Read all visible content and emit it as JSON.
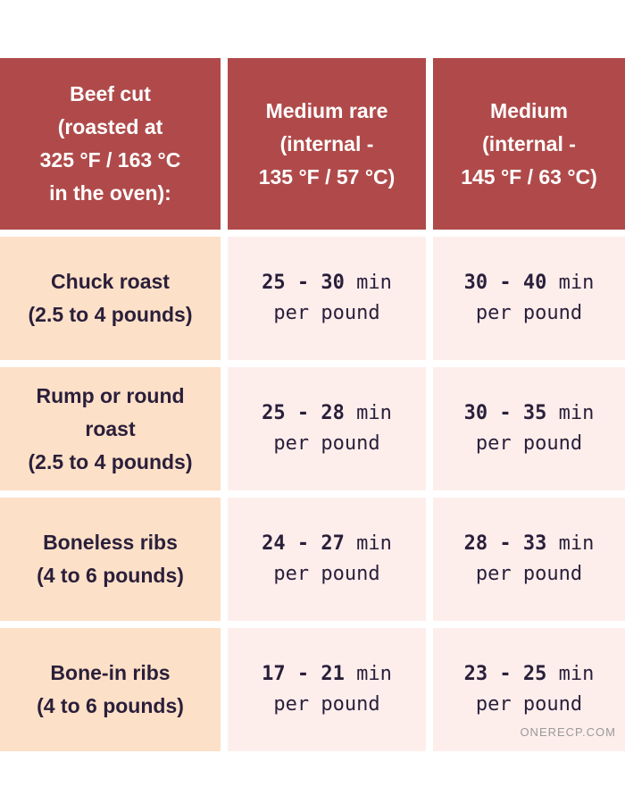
{
  "headers": [
    "Beef cut\n(roasted at\n325 °F / 163 °C\nin the oven):",
    "Medium rare\n(internal -\n135 °F / 57 °C)",
    "Medium\n(internal -\n145 °F / 63 °C)"
  ],
  "rows": [
    {
      "cut": "Chuck roast\n(2.5 to 4 pounds)",
      "medium_rare": {
        "range": "25 - 30",
        "unit": " min",
        "per": "per pound"
      },
      "medium": {
        "range": "30 - 40",
        "unit": " min",
        "per": "per pound"
      }
    },
    {
      "cut": "Rump or round\nroast\n(2.5 to 4 pounds)",
      "medium_rare": {
        "range": "25 - 28",
        "unit": " min",
        "per": "per pound"
      },
      "medium": {
        "range": "30 - 35",
        "unit": " min",
        "per": "per pound"
      }
    },
    {
      "cut": "Boneless ribs\n(4 to 6 pounds)",
      "medium_rare": {
        "range": "24 - 27",
        "unit": " min",
        "per": "per pound"
      },
      "medium": {
        "range": "28 - 33",
        "unit": " min",
        "per": "per pound"
      }
    },
    {
      "cut": "Bone-in ribs\n(4 to 6 pounds)",
      "medium_rare": {
        "range": "17 - 21",
        "unit": " min",
        "per": "per pound"
      },
      "medium": {
        "range": "23 - 25",
        "unit": " min",
        "per": "per pound"
      }
    }
  ],
  "watermark": "ONERECP.COM",
  "colors": {
    "header_bg": "#b04a4a",
    "cut_bg": "#fde0c8",
    "time_bg": "#fdeeec",
    "text": "#2a1f3a"
  }
}
